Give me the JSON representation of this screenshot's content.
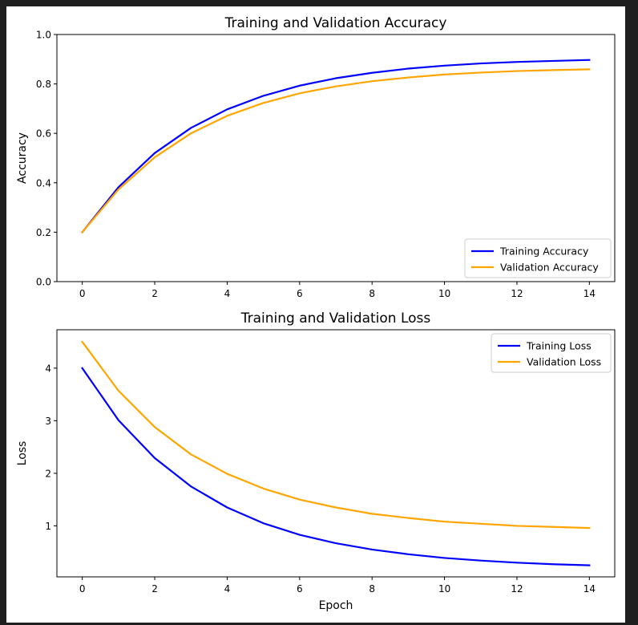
{
  "colors": {
    "training": "#0000ff",
    "validation": "#ffa500",
    "window_background": "#1f1f1f",
    "figure_background": "#ffffff"
  },
  "chart_data": [
    {
      "type": "line",
      "title": "Training and Validation Accuracy",
      "xlabel": "",
      "ylabel": "Accuracy",
      "xlim": [
        -0.7,
        14.7
      ],
      "ylim": [
        0.0,
        1.0
      ],
      "xticks": [
        0,
        2,
        4,
        6,
        8,
        10,
        12,
        14
      ],
      "yticks": [
        0.0,
        0.2,
        0.4,
        0.6,
        0.8,
        1.0
      ],
      "ytick_labels": [
        "0.0",
        "0.2",
        "0.4",
        "0.6",
        "0.8",
        "1.0"
      ],
      "grid": false,
      "legend_position": "lower-right",
      "x": [
        0,
        1,
        2,
        3,
        4,
        5,
        6,
        7,
        8,
        9,
        10,
        11,
        12,
        13,
        14
      ],
      "series": [
        {
          "name": "Training Accuracy",
          "color": "#0000ff",
          "values": [
            0.2,
            0.382,
            0.52,
            0.622,
            0.697,
            0.752,
            0.793,
            0.823,
            0.845,
            0.862,
            0.874,
            0.883,
            0.889,
            0.893,
            0.897
          ]
        },
        {
          "name": "Validation Accuracy",
          "color": "#ffa500",
          "values": [
            0.2,
            0.373,
            0.503,
            0.6,
            0.671,
            0.723,
            0.762,
            0.79,
            0.811,
            0.826,
            0.838,
            0.846,
            0.852,
            0.856,
            0.859
          ]
        }
      ]
    },
    {
      "type": "line",
      "title": "Training and Validation Loss",
      "xlabel": "Epoch",
      "ylabel": "Loss",
      "xlim": [
        -0.7,
        14.7
      ],
      "ylim": [
        0.03,
        4.73
      ],
      "xticks": [
        0,
        2,
        4,
        6,
        8,
        10,
        12,
        14
      ],
      "yticks": [
        1,
        2,
        3,
        4
      ],
      "ytick_labels": [
        "1",
        "2",
        "3",
        "4"
      ],
      "grid": false,
      "legend_position": "upper-right",
      "x": [
        0,
        1,
        2,
        3,
        4,
        5,
        6,
        7,
        8,
        9,
        10,
        11,
        12,
        13,
        14
      ],
      "series": [
        {
          "name": "Training Loss",
          "color": "#0000ff",
          "values": [
            4.0,
            3.01,
            2.29,
            1.75,
            1.35,
            1.05,
            0.83,
            0.67,
            0.55,
            0.46,
            0.39,
            0.34,
            0.3,
            0.27,
            0.25
          ]
        },
        {
          "name": "Validation Loss",
          "color": "#ffa500",
          "values": [
            4.5,
            3.57,
            2.88,
            2.36,
            1.99,
            1.71,
            1.5,
            1.35,
            1.23,
            1.15,
            1.08,
            1.04,
            1.0,
            0.98,
            0.96
          ]
        }
      ]
    }
  ]
}
